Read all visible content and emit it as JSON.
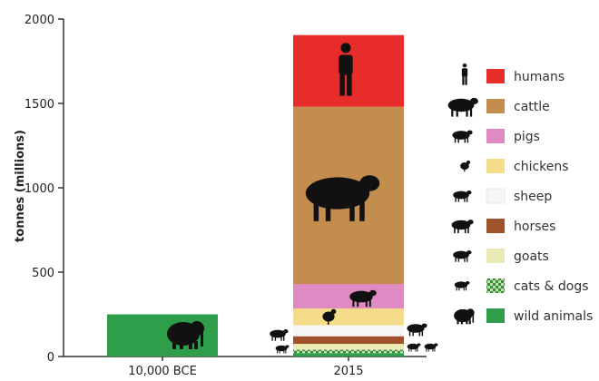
{
  "chart_data": {
    "type": "bar",
    "stacked": true,
    "ylabel": "tonnes (millions)",
    "ylim": [
      0,
      2000
    ],
    "yticks": [
      "0",
      "500",
      "1000",
      "1500",
      "2000"
    ],
    "categories": [
      "10,000 BCE",
      "2015"
    ],
    "series": [
      {
        "name": "wild animals",
        "color": "#2e9e4a",
        "icon": "mammoth-icon",
        "values": [
          250,
          20
        ]
      },
      {
        "name": "cats & dogs",
        "color": "#3d8a3d",
        "pattern": "checker",
        "icon": "dog-icon",
        "values": [
          0,
          20
        ]
      },
      {
        "name": "goats",
        "color": "#eaeab4",
        "icon": "goat-icon",
        "values": [
          0,
          35
        ]
      },
      {
        "name": "horses",
        "color": "#a0522d",
        "icon": "horse-icon",
        "values": [
          0,
          45
        ]
      },
      {
        "name": "sheep",
        "color": "#f6f6f6",
        "icon": "sheep-icon",
        "values": [
          0,
          65
        ]
      },
      {
        "name": "chickens",
        "color": "#f5dc8a",
        "icon": "chicken-icon",
        "values": [
          0,
          100
        ]
      },
      {
        "name": "pigs",
        "color": "#e08ac4",
        "icon": "pig-icon",
        "values": [
          0,
          145
        ]
      },
      {
        "name": "cattle",
        "color": "#c28d4d",
        "icon": "cow-icon",
        "values": [
          0,
          1050
        ]
      },
      {
        "name": "humans",
        "color": "#e82b2b",
        "icon": "person-icon",
        "values": [
          0,
          425
        ]
      }
    ],
    "legend_order": [
      "humans",
      "cattle",
      "pigs",
      "chickens",
      "sheep",
      "horses",
      "goats",
      "cats & dogs",
      "wild animals"
    ],
    "legend_position": "right",
    "grid": false
  }
}
